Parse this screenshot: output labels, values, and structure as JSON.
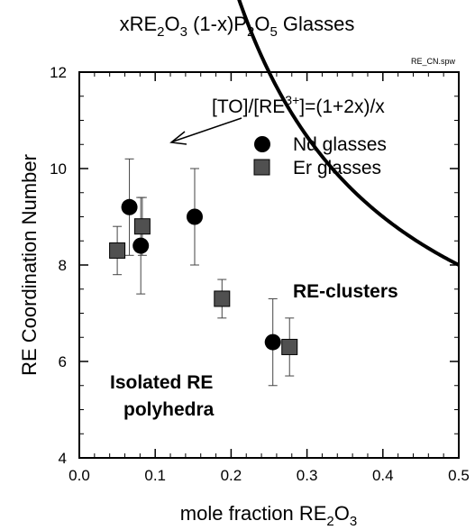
{
  "colors": {
    "nd_marker": "#000000",
    "er_marker": "#505050",
    "curve": "#000000"
  },
  "chart_data": {
    "type": "scatter",
    "title_parts": [
      "xRE",
      "2",
      "O",
      "3",
      " (1-x)P",
      "2",
      "O",
      "5",
      " Glasses"
    ],
    "file_label": "RE_CN.spw",
    "xlabel_parts": [
      "mole fraction RE",
      "2",
      "O",
      "3"
    ],
    "ylabel": "RE Coordination Number",
    "xlim": [
      0.0,
      0.5
    ],
    "ylim": [
      4,
      12
    ],
    "x_ticks": [
      "0.0",
      "0.1",
      "0.2",
      "0.3",
      "0.4",
      "0.5"
    ],
    "y_ticks": [
      "4",
      "6",
      "8",
      "10",
      "12"
    ],
    "grid": false,
    "legend_position": "top-right",
    "series": [
      {
        "name": "Nd glasses",
        "marker": "circle",
        "points": [
          {
            "x": 0.066,
            "y": 9.2,
            "err": 1.0
          },
          {
            "x": 0.081,
            "y": 8.4,
            "err": 1.0
          },
          {
            "x": 0.152,
            "y": 9.0,
            "err": 1.0
          },
          {
            "x": 0.255,
            "y": 6.4,
            "err": 0.9
          }
        ]
      },
      {
        "name": "Er glasses",
        "marker": "square",
        "points": [
          {
            "x": 0.05,
            "y": 8.3,
            "err": 0.5
          },
          {
            "x": 0.083,
            "y": 8.8,
            "err": 0.6
          },
          {
            "x": 0.188,
            "y": 7.3,
            "err": 0.4
          },
          {
            "x": 0.277,
            "y": 6.3,
            "err": 0.6
          }
        ]
      }
    ],
    "curve": {
      "formula_parts": [
        "[TO]/[RE",
        "3+",
        "]=(1+2x)/x"
      ],
      "x_start": 0.1,
      "x_end": 0.5
    },
    "annotations": {
      "clusters": "RE-clusters",
      "isolated_line1": "Isolated RE",
      "isolated_line2": "polyhedra"
    }
  }
}
